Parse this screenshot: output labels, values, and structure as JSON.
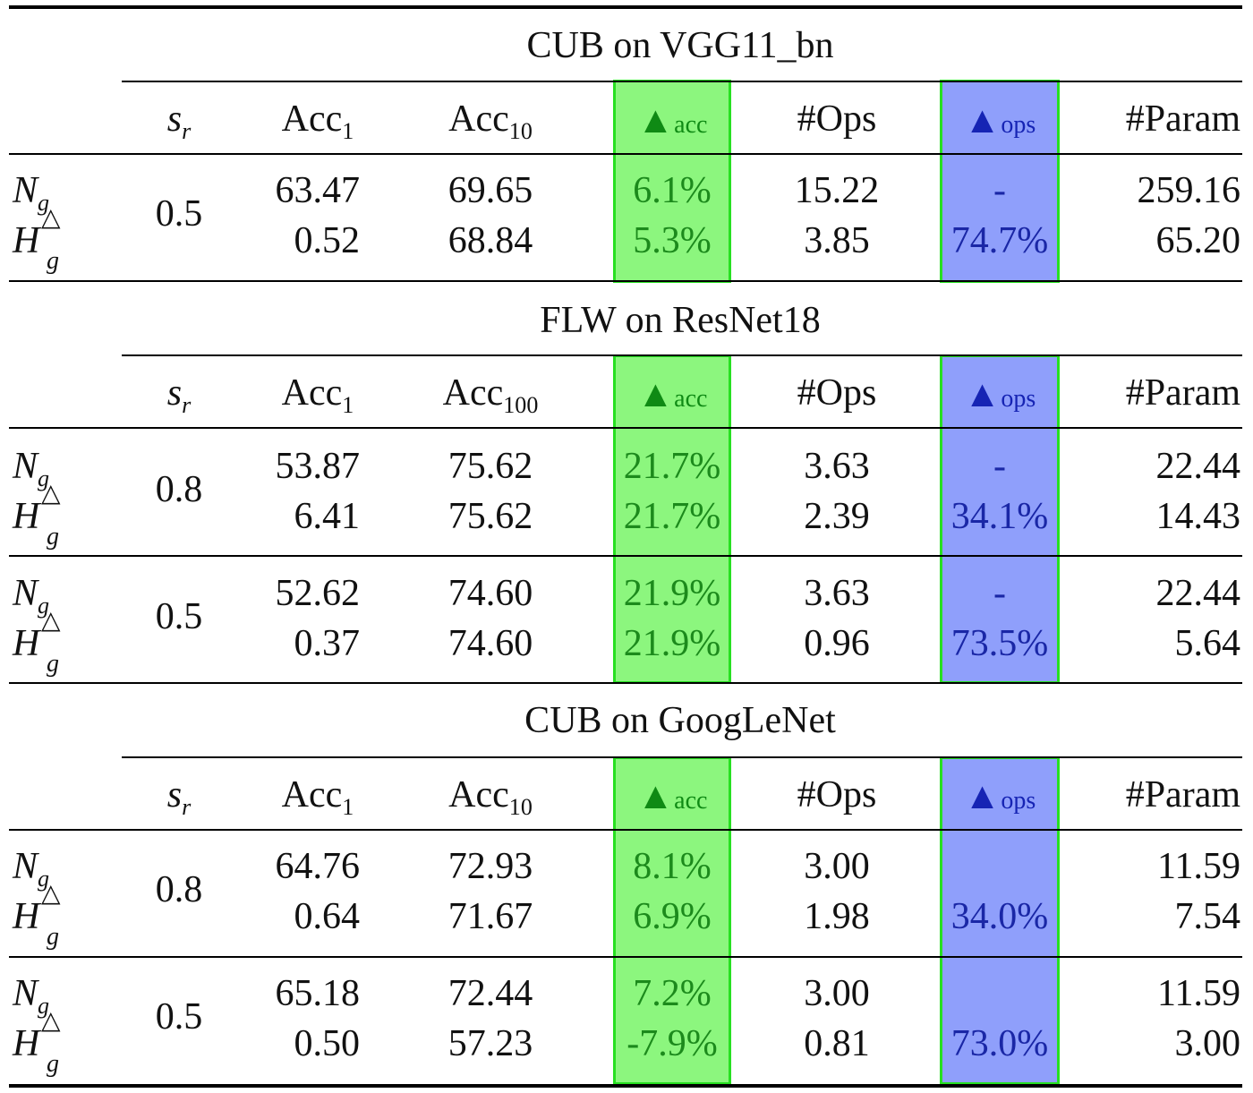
{
  "columns": {
    "sr": {
      "base": "s",
      "sub": "r"
    },
    "acc1": {
      "base": "Acc",
      "sub": "1"
    },
    "acc_cub": {
      "base": "Acc",
      "sub": "10"
    },
    "acc_flw": {
      "base": "Acc",
      "sub": "100"
    },
    "dacc": {
      "tri": "▲",
      "sub": "acc"
    },
    "ops": "#Ops",
    "dops": {
      "tri": "▲",
      "sub": "ops"
    },
    "param": "#Param"
  },
  "row_labels": {
    "N": "N",
    "N_sub": "g",
    "H": "H",
    "H_sub": "g",
    "H_sup": "△"
  },
  "sections": [
    {
      "title": "CUB on VGG11_bn",
      "groups": [
        {
          "sr": "0.5",
          "N": {
            "acc1": "63.47",
            "acck": "69.65",
            "dacc": "6.1%",
            "ops": "15.22",
            "dops": "-",
            "param": "259.16"
          },
          "H": {
            "acc1": "0.52",
            "acck": "68.84",
            "dacc": "5.3%",
            "ops": "3.85",
            "dops": "74.7%",
            "param": "65.20"
          }
        }
      ]
    },
    {
      "title": "FLW on ResNet18",
      "groups": [
        {
          "sr": "0.8",
          "N": {
            "acc1": "53.87",
            "acck": "75.62",
            "dacc": "21.7%",
            "ops": "3.63",
            "dops": "-",
            "param": "22.44"
          },
          "H": {
            "acc1": "6.41",
            "acck": "75.62",
            "dacc": "21.7%",
            "ops": "2.39",
            "dops": "34.1%",
            "param": "14.43"
          }
        },
        {
          "sr": "0.5",
          "N": {
            "acc1": "52.62",
            "acck": "74.60",
            "dacc": "21.9%",
            "ops": "3.63",
            "dops": "-",
            "param": "22.44"
          },
          "H": {
            "acc1": "0.37",
            "acck": "74.60",
            "dacc": "21.9%",
            "ops": "0.96",
            "dops": "73.5%",
            "param": "5.64"
          }
        }
      ]
    },
    {
      "title": "CUB on GoogLeNet",
      "groups": [
        {
          "sr": "0.8",
          "N": {
            "acc1": "64.76",
            "acck": "72.93",
            "dacc": "8.1%",
            "ops": "3.00",
            "dops": "",
            "param": "11.59"
          },
          "H": {
            "acc1": "0.64",
            "acck": "71.67",
            "dacc": "6.9%",
            "ops": "1.98",
            "dops": "34.0%",
            "param": "7.54"
          }
        },
        {
          "sr": "0.5",
          "N": {
            "acc1": "65.18",
            "acck": "72.44",
            "dacc": "7.2%",
            "ops": "3.00",
            "dops": "",
            "param": "11.59"
          },
          "H": {
            "acc1": "0.50",
            "acck": "57.23",
            "dacc": "-7.9%",
            "ops": "0.81",
            "dops": "73.0%",
            "param": "3.00"
          }
        }
      ]
    }
  ]
}
